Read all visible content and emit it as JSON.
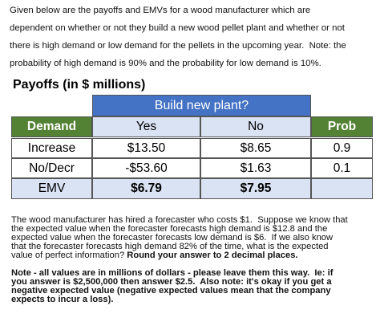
{
  "intro": [
    "Given below are the payoffs and EMVs for a wood manufacturer which are",
    "dependent on whether or not they build a new wood pellet plant and whether or not",
    "there is high demand or low demand for the pellets in the upcoming year.  Note: the",
    "probability of high demand is 90% and the probability for low demand is 10%."
  ],
  "table": {
    "title": "Payoffs (in $ millions)",
    "group_header": "Build new plant?",
    "columns": [
      "Demand",
      "Yes",
      "No",
      "Prob"
    ],
    "rows": [
      [
        "Increase",
        "$13.50",
        "$8.65",
        "0.9"
      ],
      [
        "No/Decr",
        "-$53.60",
        "$1.63",
        "0.1"
      ],
      [
        "EMV",
        "$6.79",
        "$7.95"
      ]
    ]
  },
  "question": {
    "lines": [
      "The wood manufacturer has hired a forecaster who costs $1.  Suppose we know that",
      "the expected value when the forecaster forecasts high demand is $12.8 and the",
      "expected value when the forecaster forecasts low demand is $6.  If we also know",
      "that the forecaster forecasts high demand 82% of the time, what is the expected"
    ],
    "last": "value of perfect information?",
    "emphasis": "Round your answer to 2 decimal places."
  },
  "note": [
    "Note - all values are in millions of dollars - please leave them this way.  Ie: if",
    "you answer is $2,500,000 then answer $2.5.  Also note: it's okay if you get a",
    "negative expected value (negative expected values mean that the company",
    "expects to incur a loss)."
  ]
}
